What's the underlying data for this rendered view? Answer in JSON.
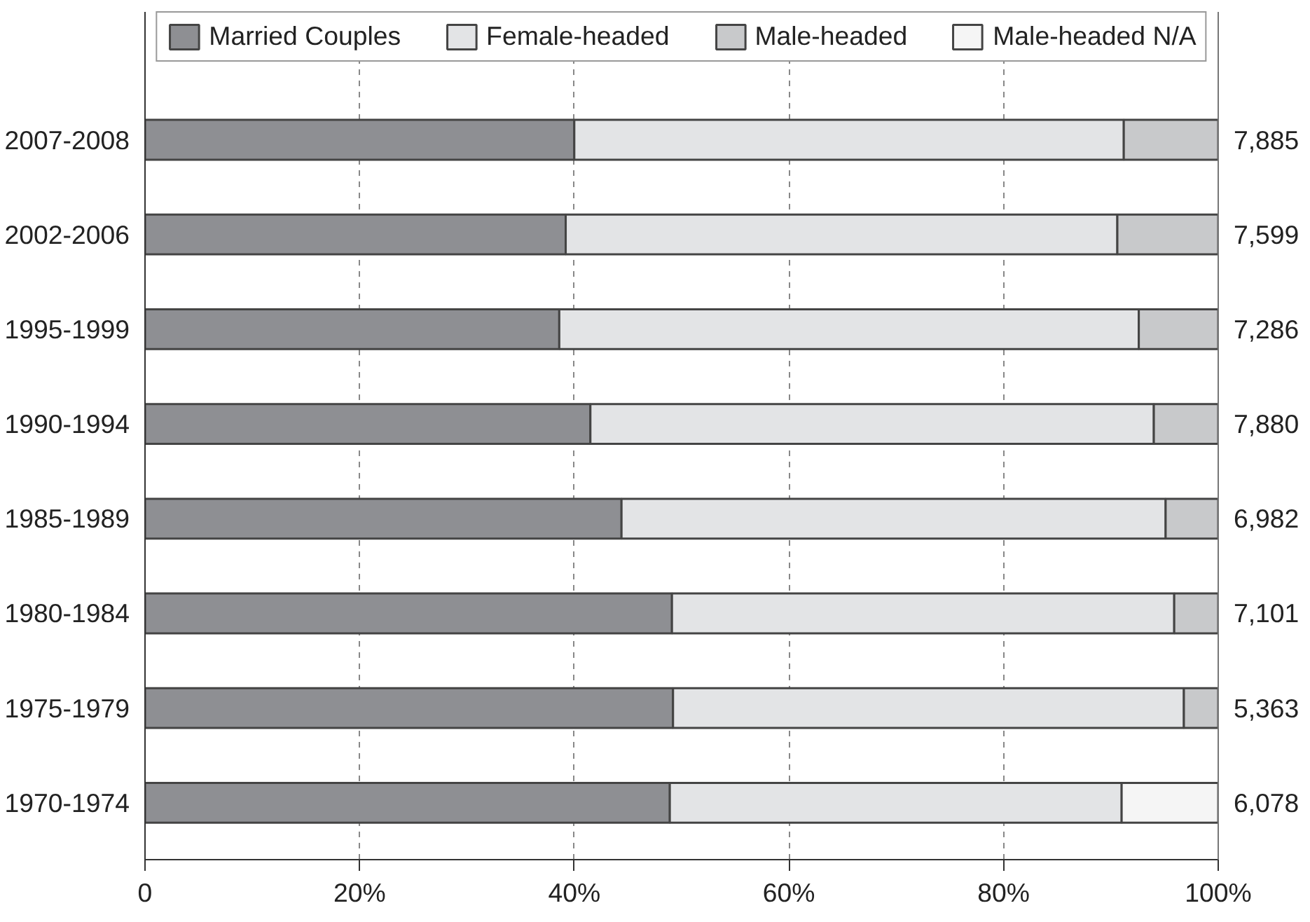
{
  "chart_data": {
    "type": "bar",
    "orientation": "horizontal",
    "stacked": true,
    "categories": [
      "2007-2008",
      "2002-2006",
      "1995-1999",
      "1990-1994",
      "1985-1989",
      "1980-1984",
      "1975-1979",
      "1970-1974"
    ],
    "series": [
      {
        "name": "Married Couples",
        "color": "#8e8f93",
        "values": [
          40.0,
          39.2,
          38.6,
          41.5,
          44.4,
          49.1,
          49.2,
          48.9
        ]
      },
      {
        "name": "Female-headed",
        "color": "#e3e4e6",
        "values": [
          51.2,
          51.4,
          54.0,
          52.5,
          50.7,
          46.8,
          47.6,
          42.1
        ]
      },
      {
        "name": "Male-headed",
        "color": "#c8c9cb",
        "values": [
          8.8,
          9.4,
          7.4,
          6.0,
          4.9,
          4.1,
          3.2,
          null
        ]
      },
      {
        "name": "Male-headed N/A",
        "color": "#f5f5f5",
        "values": [
          null,
          null,
          null,
          null,
          null,
          null,
          null,
          9.0
        ]
      }
    ],
    "annotations": [
      "7,885",
      "7,599",
      "7,286",
      "7,880",
      "6,982",
      "7,101",
      "5,363",
      "6,078"
    ],
    "xlim": [
      0,
      100
    ],
    "xticks": [
      0,
      {
        "value": 20,
        "label": "20%"
      },
      {
        "value": 40,
        "label": "40%"
      },
      {
        "value": 60,
        "label": "60%"
      },
      {
        "value": 80,
        "label": "80%"
      },
      {
        "value": 100,
        "label": "100%"
      }
    ],
    "grid": "x",
    "legend": "top"
  }
}
